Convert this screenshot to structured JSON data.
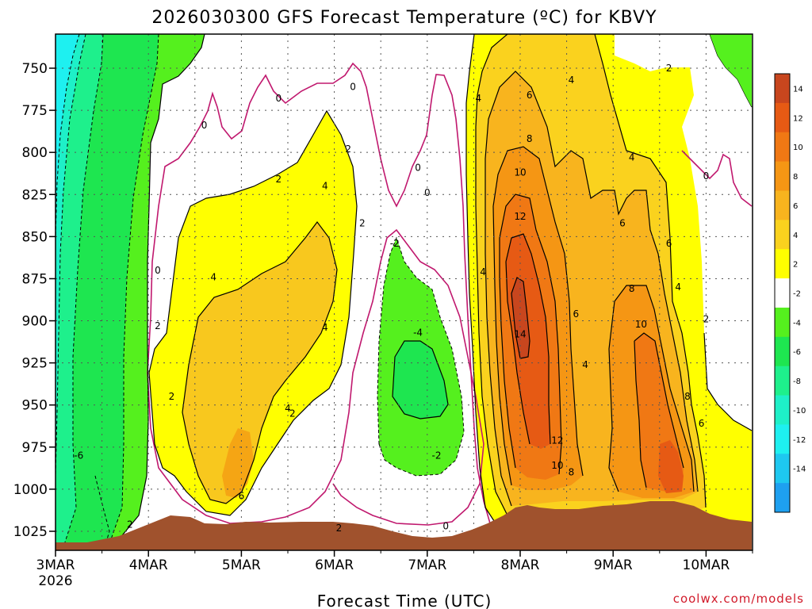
{
  "chart_data": {
    "type": "heatmap",
    "title": "2026030300 GFS Forecast Temperature (ºC) for KBVY",
    "xlabel": "Forecast Time (UTC)",
    "ylabel": "",
    "x_ticks": [
      "3MAR",
      "4MAR",
      "5MAR",
      "6MAR",
      "7MAR",
      "8MAR",
      "9MAR",
      "10MAR"
    ],
    "x_subtick": "2026",
    "x_range_days": [
      0,
      7.5
    ],
    "y_ticks": [
      "750",
      "775",
      "800",
      "825",
      "850",
      "875",
      "900",
      "925",
      "950",
      "975",
      "1000",
      "1025"
    ],
    "y_range_hpa": [
      730,
      1035
    ],
    "colorbar_ticks": [
      "14",
      "12",
      "10",
      "8",
      "6",
      "4",
      "2",
      "-2",
      "-4",
      "-6",
      "-8",
      "-10",
      "-12",
      "-14"
    ],
    "colorbar_colors": [
      "#c8461e",
      "#e65a14",
      "#f07814",
      "#f59614",
      "#f8b41e",
      "#fad21e",
      "#ffff00",
      "#ffffff",
      "#55f01e",
      "#1ee650",
      "#1ef08c",
      "#1ef0c8",
      "#1ef0f0",
      "#1ec8f0",
      "#1ea0f0"
    ],
    "contour_labels": [
      {
        "text": "0",
        "day": 2.4,
        "p": 768
      },
      {
        "text": "0",
        "day": 1.6,
        "p": 784
      },
      {
        "text": "0",
        "day": 3.2,
        "p": 761
      },
      {
        "text": "0",
        "day": 4.0,
        "p": 824
      },
      {
        "text": "0",
        "day": 3.9,
        "p": 809
      },
      {
        "text": "0",
        "day": 7.0,
        "p": 814
      },
      {
        "text": "0",
        "day": 1.1,
        "p": 870
      },
      {
        "text": "0",
        "day": 4.2,
        "p": 1022
      },
      {
        "text": "-2",
        "day": 3.65,
        "p": 854
      },
      {
        "text": "-2",
        "day": 4.1,
        "p": 980
      },
      {
        "text": "-4",
        "day": 3.9,
        "p": 907
      },
      {
        "text": "-6",
        "day": 0.25,
        "p": 980
      },
      {
        "text": "2",
        "day": 0.8,
        "p": 1021
      },
      {
        "text": "2",
        "day": 1.1,
        "p": 903
      },
      {
        "text": "2",
        "day": 1.25,
        "p": 945
      },
      {
        "text": "2",
        "day": 2.4,
        "p": 816
      },
      {
        "text": "2",
        "day": 3.15,
        "p": 798
      },
      {
        "text": "2",
        "day": 3.3,
        "p": 842
      },
      {
        "text": "2",
        "day": 2.55,
        "p": 955
      },
      {
        "text": "2",
        "day": 3.05,
        "p": 1023
      },
      {
        "text": "2",
        "day": 6.6,
        "p": 750
      },
      {
        "text": "2",
        "day": 7.0,
        "p": 899
      },
      {
        "text": "4",
        "day": 1.7,
        "p": 874
      },
      {
        "text": "4",
        "day": 2.5,
        "p": 952
      },
      {
        "text": "4",
        "day": 2.9,
        "p": 820
      },
      {
        "text": "4",
        "day": 2.9,
        "p": 904
      },
      {
        "text": "4",
        "day": 4.55,
        "p": 768
      },
      {
        "text": "4",
        "day": 4.6,
        "p": 871
      },
      {
        "text": "4",
        "day": 5.55,
        "p": 757
      },
      {
        "text": "4",
        "day": 6.2,
        "p": 803
      },
      {
        "text": "4",
        "day": 5.7,
        "p": 926
      },
      {
        "text": "4",
        "day": 6.7,
        "p": 880
      },
      {
        "text": "6",
        "day": 2.0,
        "p": 1004
      },
      {
        "text": "6",
        "day": 5.1,
        "p": 766
      },
      {
        "text": "6",
        "day": 5.6,
        "p": 896
      },
      {
        "text": "6",
        "day": 6.1,
        "p": 842
      },
      {
        "text": "6",
        "day": 6.6,
        "p": 854
      },
      {
        "text": "6",
        "day": 6.95,
        "p": 961
      },
      {
        "text": "8",
        "day": 5.1,
        "p": 792
      },
      {
        "text": "8",
        "day": 5.55,
        "p": 990
      },
      {
        "text": "8",
        "day": 6.2,
        "p": 881
      },
      {
        "text": "8",
        "day": 6.8,
        "p": 945
      },
      {
        "text": "10",
        "day": 5.0,
        "p": 812
      },
      {
        "text": "10",
        "day": 5.4,
        "p": 986
      },
      {
        "text": "10",
        "day": 6.3,
        "p": 902
      },
      {
        "text": "12",
        "day": 5.0,
        "p": 838
      },
      {
        "text": "12",
        "day": 5.4,
        "p": 971
      },
      {
        "text": "14",
        "day": 5.0,
        "p": 908
      }
    ]
  },
  "credit": "coolwx.com/models",
  "colors": {
    "ground": "#a0522d",
    "contour_zero": "#c0186e",
    "contour": "#000000"
  }
}
